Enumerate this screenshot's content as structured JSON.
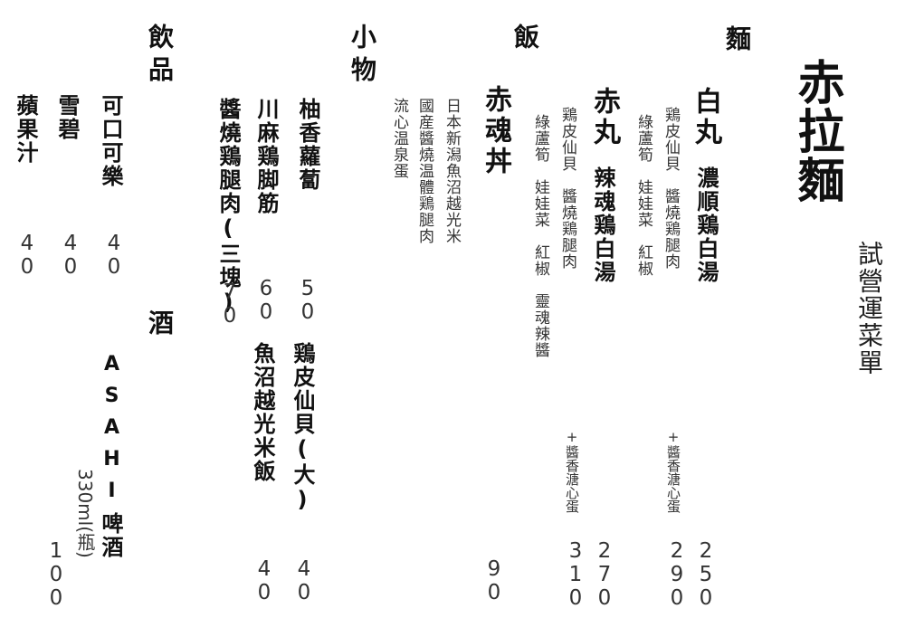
{
  "title": "赤拉麵",
  "subtitle": "試營運菜單",
  "sections": {
    "noodles": "麵",
    "rice": "飯",
    "small_dishes": "小物",
    "drinks": "飲品",
    "alcohol": "酒"
  },
  "noodles": {
    "shiromaru": {
      "name": "白丸",
      "soup": "濃順鶏白湯",
      "desc1": "鶏皮仙貝　醬燒鶏腿肉",
      "desc2": "綠蘆筍　娃娃菜　紅椒",
      "addon": "+醬香溏心蛋",
      "price": "250",
      "price_addon": "290"
    },
    "akamaru": {
      "name": "赤丸",
      "soup": "辣魂鶏白湯",
      "desc1": "鶏皮仙貝　醬燒鶏腿肉",
      "desc2": "綠蘆筍　娃娃菜　紅椒　靈魂辣醬",
      "addon": "+醬香溏心蛋",
      "price": "270",
      "price_addon": "310"
    }
  },
  "rice": {
    "name": "赤魂丼",
    "desc1": "日本新潟魚沼越光米",
    "desc2": "國産醬燒温體鶏腿肉",
    "desc3": "流心温泉蛋",
    "price": "90"
  },
  "small_dishes": [
    {
      "name": "柚香蘿蔔",
      "price": "50"
    },
    {
      "name": "鶏皮仙貝(大)",
      "price": "40"
    },
    {
      "name": "川麻鶏脚筋",
      "price": "60"
    },
    {
      "name": "魚沼越光米飯",
      "price": "40"
    },
    {
      "name": "醬燒鶏腿肉(三塊)",
      "price": "70"
    }
  ],
  "drinks": [
    {
      "name": "可口可樂",
      "price": "40"
    },
    {
      "name": "雪碧",
      "price": "40"
    },
    {
      "name": "蘋果汁",
      "price": "40"
    }
  ],
  "alcohol": {
    "name_brand": "ASAHI",
    "name_rest": "啤酒",
    "size": "330ml(瓶)",
    "price": "100"
  }
}
